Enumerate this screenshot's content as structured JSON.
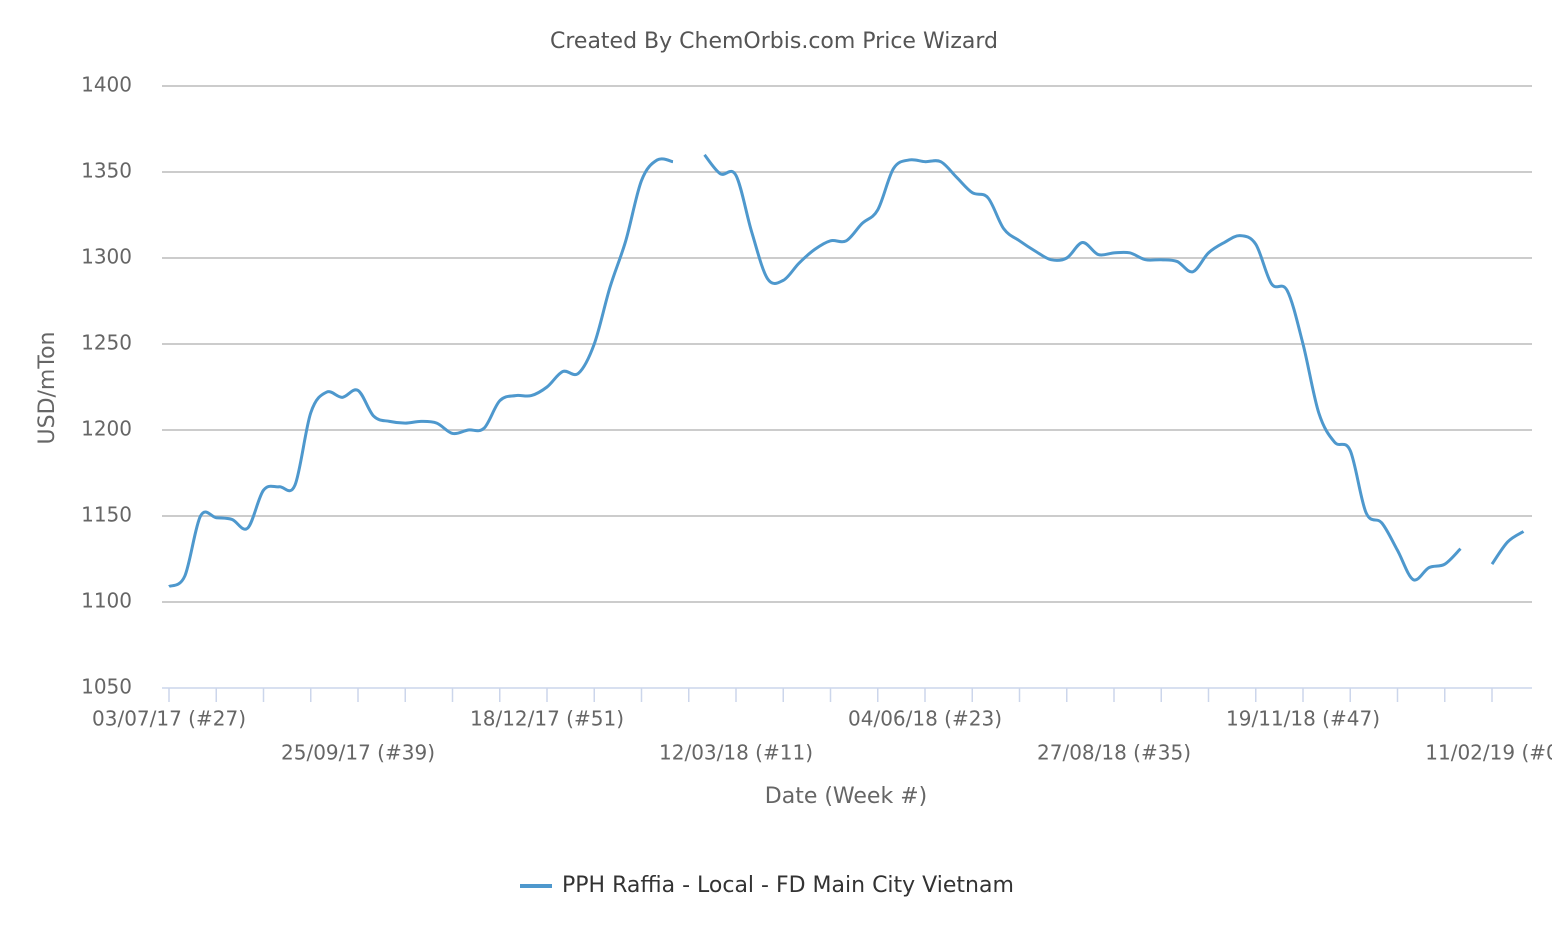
{
  "chart_data": {
    "type": "line",
    "title": "Created By ChemOrbis.com Price Wizard",
    "y_label": "USD/mTon",
    "x_label": "Date (Week #)",
    "categories": [
      "03/07/17 (#27)",
      null,
      null,
      null,
      null,
      null,
      null,
      null,
      null,
      null,
      null,
      null,
      "25/09/17 (#39)",
      null,
      null,
      null,
      null,
      null,
      null,
      null,
      null,
      null,
      null,
      null,
      "18/12/17 (#51)",
      null,
      null,
      null,
      null,
      null,
      null,
      null,
      null,
      null,
      null,
      null,
      "12/03/18 (#11)",
      null,
      null,
      null,
      null,
      null,
      null,
      null,
      null,
      null,
      null,
      null,
      "04/06/18 (#23)",
      null,
      null,
      null,
      null,
      null,
      null,
      null,
      null,
      null,
      null,
      null,
      "27/08/18 (#35)",
      null,
      null,
      null,
      null,
      null,
      null,
      null,
      null,
      null,
      null,
      null,
      "19/11/18 (#47)",
      null,
      null,
      null,
      null,
      null,
      null,
      null,
      null,
      null,
      null,
      null,
      "11/02/19 (#0",
      null,
      null
    ],
    "series": [
      {
        "name": "PPH Raffia - Local - FD Main City Vietnam",
        "color": "#4e98cd",
        "values": [
          1109,
          1115,
          1150,
          1149,
          1148,
          1143,
          1165,
          1167,
          1168,
          1210,
          1222,
          1219,
          1223,
          1208,
          1205,
          1204,
          1205,
          1204,
          1198,
          1200,
          1201,
          1217,
          1220,
          1220,
          1225,
          1234,
          1233,
          1250,
          1283,
          1310,
          1345,
          1357,
          1356,
          null,
          1360,
          1349,
          1348,
          1315,
          1288,
          1287,
          1297,
          1305,
          1310,
          1310,
          1320,
          1328,
          1352,
          1357,
          1356,
          1356,
          1347,
          1338,
          1335,
          1317,
          1310,
          1304,
          1299,
          1300,
          1309,
          1302,
          1303,
          1303,
          1299,
          1299,
          1298,
          1292,
          1303,
          1309,
          1313,
          1308,
          1285,
          1281,
          1250,
          1210,
          1193,
          1188,
          1152,
          1146,
          1130,
          1113,
          1120,
          1122,
          1131,
          null,
          1122,
          1135,
          1141
        ]
      }
    ],
    "ylim": [
      1050,
      1400
    ],
    "yticks": [
      1050,
      1100,
      1150,
      1200,
      1250,
      1300,
      1350,
      1400
    ],
    "grid": true,
    "legend": "bottom"
  }
}
